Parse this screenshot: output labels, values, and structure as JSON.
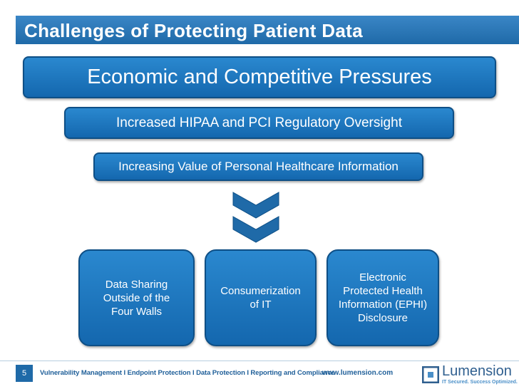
{
  "slide": {
    "title": "Challenges of Protecting Patient Data",
    "pressures": [
      "Economic and Competitive Pressures",
      "Increased HIPAA and PCI Regulatory Oversight",
      "Increasing Value of Personal Healthcare Information"
    ],
    "outcomes": [
      "Data Sharing\nOutside of the\nFour Walls",
      "Consumerization\nof IT",
      "Electronic\nProtected Health\nInformation (EPHI)\nDisclosure"
    ]
  },
  "footer": {
    "page_number": "5",
    "tagline": "Vulnerability Management I Endpoint Protection I Data Protection I Reporting and Compliance",
    "website": "www.lumension.com",
    "logo_name": "Lumension",
    "logo_tagline": "IT Secured. Success Optimized."
  },
  "colors": {
    "header": "#1f6aa8",
    "box": "#1a74bd",
    "box_border": "#0e4f86",
    "footer_text": "#1f5f99"
  },
  "icons": [
    "double-chevron-down-icon",
    "lumension-logo-icon"
  ]
}
